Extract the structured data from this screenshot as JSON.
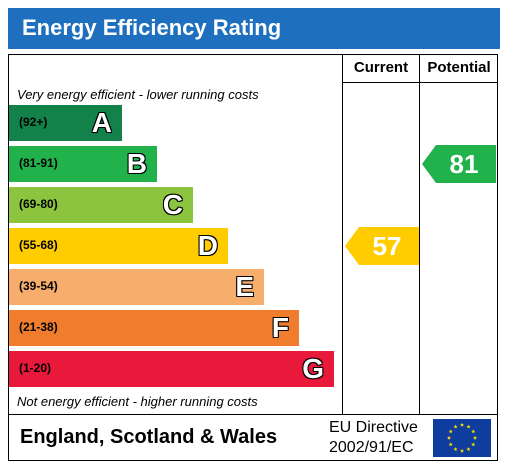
{
  "header": {
    "title": "Energy Efficiency Rating"
  },
  "columns": {
    "current": "Current",
    "potential": "Potential"
  },
  "notes": {
    "top": "Very energy efficient - lower running costs",
    "bottom": "Not energy efficient - higher running costs"
  },
  "chart_data": {
    "type": "bar",
    "title": "Energy Efficiency Rating",
    "bands": [
      {
        "range": "(92+)",
        "letter": "A",
        "color": "#12824a"
      },
      {
        "range": "(81-91)",
        "letter": "B",
        "color": "#22b24c"
      },
      {
        "range": "(69-80)",
        "letter": "C",
        "color": "#8cc43f"
      },
      {
        "range": "(55-68)",
        "letter": "D",
        "color": "#ffcc00"
      },
      {
        "range": "(39-54)",
        "letter": "E",
        "color": "#f7ad6b"
      },
      {
        "range": "(21-38)",
        "letter": "F",
        "color": "#ef7d2d"
      },
      {
        "range": "(1-20)",
        "letter": "G",
        "color": "#e9193c"
      }
    ],
    "current": {
      "value": 57,
      "band": "D",
      "color": "#ffcc00"
    },
    "potential": {
      "value": 81,
      "band": "B",
      "color": "#22b24c"
    }
  },
  "footer": {
    "region": "England, Scotland & Wales",
    "directive_line1": "EU Directive",
    "directive_line2": "2002/91/EC",
    "flag_icon": "eu-flag-icon"
  }
}
